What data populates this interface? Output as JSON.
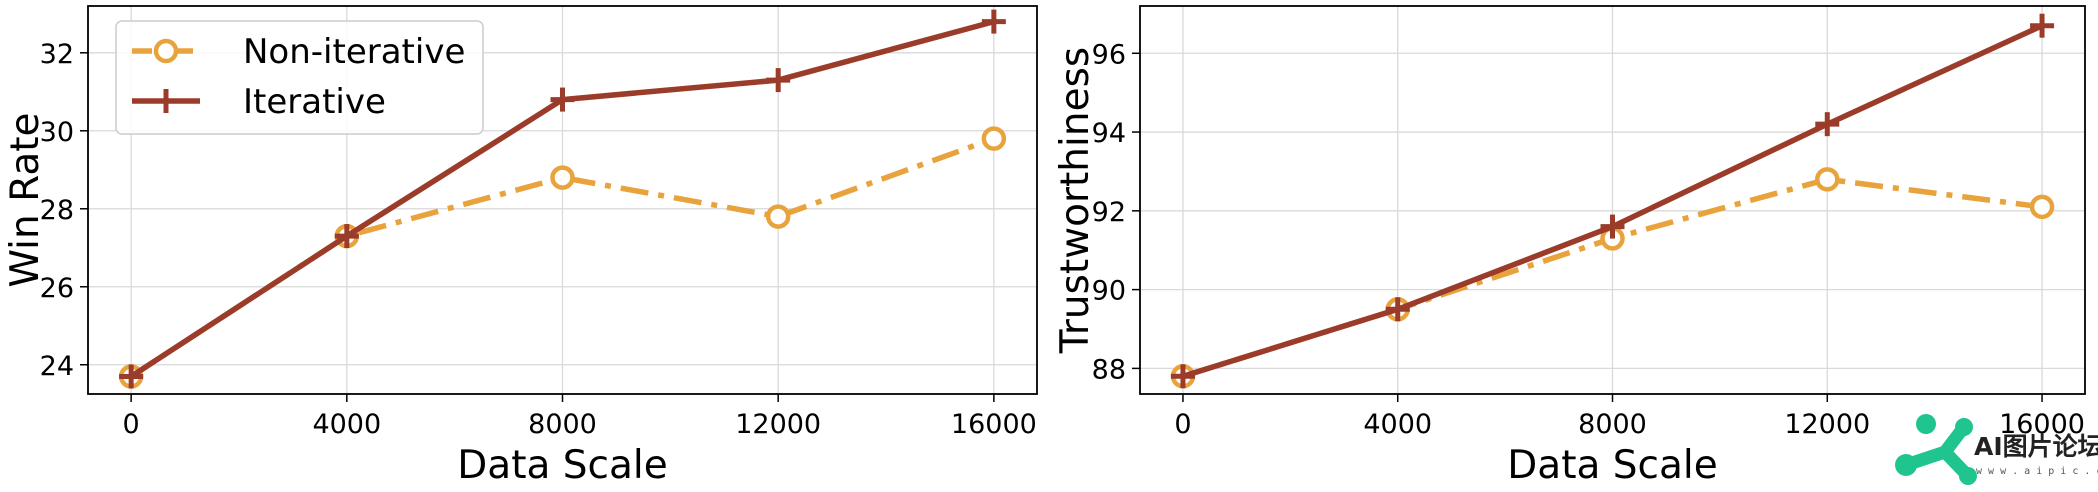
{
  "chart_data": [
    {
      "type": "line",
      "xlabel": "Data Scale",
      "ylabel": "Win Rate",
      "x": [
        0,
        4000,
        8000,
        12000,
        16000
      ],
      "xlim": [
        -800,
        16800
      ],
      "ylim": [
        23.25,
        33.2
      ],
      "xticks": [
        "0",
        "4000",
        "8000",
        "12000",
        "16000"
      ],
      "yticks": [
        "24",
        "26",
        "28",
        "30",
        "32"
      ],
      "grid": true,
      "legend": "upper-left",
      "series": [
        {
          "name": "Non-iterative",
          "values": [
            23.7,
            27.3,
            28.8,
            27.8,
            29.8
          ],
          "color": "#E8A33D",
          "style": "dashdot",
          "marker": "circle-open"
        },
        {
          "name": "Iterative",
          "values": [
            23.7,
            27.3,
            30.8,
            31.3,
            32.8
          ],
          "color": "#9B3C2A",
          "style": "solid",
          "marker": "plus"
        }
      ]
    },
    {
      "type": "line",
      "xlabel": "Data Scale",
      "ylabel": "Trustworthiness",
      "x": [
        0,
        4000,
        8000,
        12000,
        16000
      ],
      "xlim": [
        -800,
        16800
      ],
      "ylim": [
        87.35,
        97.2
      ],
      "xticks": [
        "0",
        "4000",
        "8000",
        "12000",
        "16000"
      ],
      "yticks": [
        "88",
        "90",
        "92",
        "94",
        "96"
      ],
      "grid": true,
      "series": [
        {
          "name": "Non-iterative",
          "values": [
            87.8,
            89.5,
            91.3,
            92.8,
            92.1
          ],
          "color": "#E8A33D",
          "style": "dashdot",
          "marker": "circle-open"
        },
        {
          "name": "Iterative",
          "values": [
            87.8,
            89.5,
            91.6,
            94.2,
            96.7
          ],
          "color": "#9B3C2A",
          "style": "solid",
          "marker": "plus"
        }
      ]
    }
  ],
  "watermark": {
    "title": "AI图片论坛",
    "url": "w w w . a i p i c . c c",
    "accent": "#1FC48E",
    "icon": "network-logo-icon"
  }
}
